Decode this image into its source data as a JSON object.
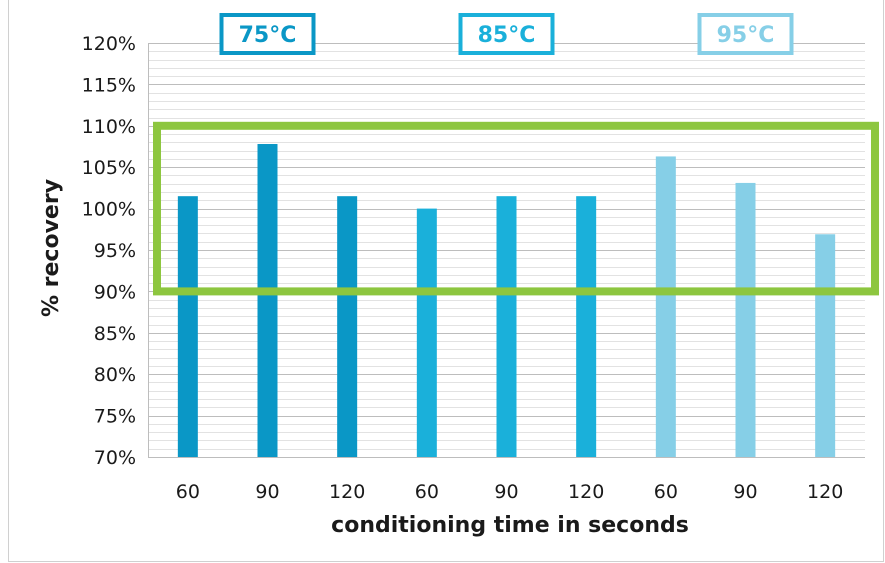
{
  "chart_data": {
    "type": "bar",
    "xlabel": "conditioning time in seconds",
    "ylabel": "% recovery",
    "ylim": [
      70,
      120
    ],
    "y_ticks": [
      "70%",
      "75%",
      "80%",
      "85%",
      "90%",
      "95%",
      "100%",
      "105%",
      "110%",
      "115%",
      "120%"
    ],
    "categories": [
      "60",
      "90",
      "120",
      "60",
      "90",
      "120",
      "60",
      "90",
      "120"
    ],
    "groups": [
      {
        "label": "75°C",
        "color": "#0a97c6",
        "values": [
          101.5,
          107.8,
          101.5
        ]
      },
      {
        "label": "85°C",
        "color": "#1ab0da",
        "values": [
          100.0,
          101.5,
          101.5
        ]
      },
      {
        "label": "95°C",
        "color": "#86cfe7",
        "values": [
          106.3,
          103.1,
          96.9
        ]
      }
    ],
    "acceptance_band": {
      "min": 90,
      "max": 110,
      "color": "#8dc63f"
    },
    "grid": true,
    "minor_grid_step": 1
  }
}
